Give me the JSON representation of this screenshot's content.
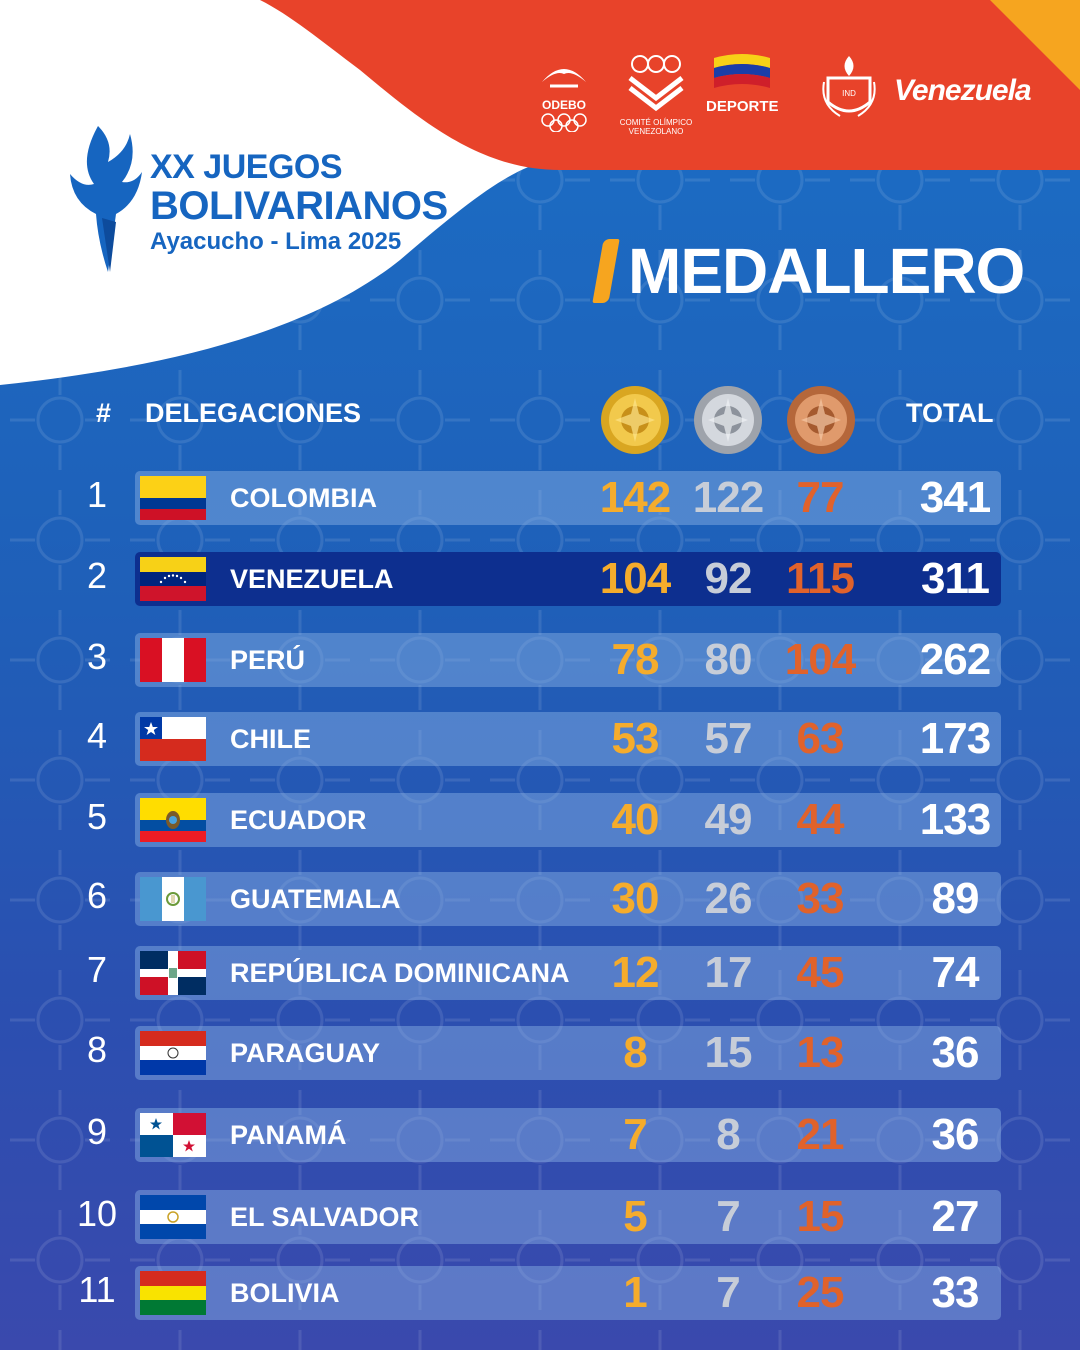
{
  "event": {
    "line1": "XX JUEGOS",
    "line2": "BOLIVARIANOS",
    "line3": "Ayacucho - Lima 2025"
  },
  "logos": {
    "odebo": "ODEBO",
    "coven_line1": "COMITÉ OLÍMPICO",
    "coven_line2": "VENEZOLANO",
    "deporte": "DEPORTE",
    "ind": "IND",
    "venezuela": "Venezuela"
  },
  "title": "MEDALLERO",
  "table": {
    "col_rank": "#",
    "col_delegations": "DELEGACIONES",
    "col_total": "TOTAL",
    "medal_icons": [
      "gold-medal-icon",
      "silver-medal-icon",
      "bronze-medal-icon"
    ],
    "rows": [
      {
        "rank": "1",
        "country": "COLOMBIA",
        "gold": "142",
        "silver": "122",
        "bronze": "77",
        "total": "341"
      },
      {
        "rank": "2",
        "country": "VENEZUELA",
        "gold": "104",
        "silver": "92",
        "bronze": "115",
        "total": "311"
      },
      {
        "rank": "3",
        "country": "PERÚ",
        "gold": "78",
        "silver": "80",
        "bronze": "104",
        "total": "262"
      },
      {
        "rank": "4",
        "country": "CHILE",
        "gold": "53",
        "silver": "57",
        "bronze": "63",
        "total": "173"
      },
      {
        "rank": "5",
        "country": "ECUADOR",
        "gold": "40",
        "silver": "49",
        "bronze": "44",
        "total": "133"
      },
      {
        "rank": "6",
        "country": "GUATEMALA",
        "gold": "30",
        "silver": "26",
        "bronze": "33",
        "total": "89"
      },
      {
        "rank": "7",
        "country": "REPÚBLICA DOMINICANA",
        "gold": "12",
        "silver": "17",
        "bronze": "45",
        "total": "74"
      },
      {
        "rank": "8",
        "country": "PARAGUAY",
        "gold": "8",
        "silver": "15",
        "bronze": "13",
        "total": "36"
      },
      {
        "rank": "9",
        "country": "PANAMÁ",
        "gold": "7",
        "silver": "8",
        "bronze": "21",
        "total": "36"
      },
      {
        "rank": "10",
        "country": "EL SALVADOR",
        "gold": "5",
        "silver": "7",
        "bronze": "15",
        "total": "27"
      },
      {
        "rank": "11",
        "country": "BOLIVIA",
        "gold": "1",
        "silver": "7",
        "bronze": "25",
        "total": "33"
      }
    ]
  },
  "colors": {
    "gold": "#f5ac2c",
    "silver": "#c7cdd8",
    "bronze": "#e0622b",
    "highlight_row": "#0d2f8f",
    "header_red": "#e8432a",
    "accent_orange": "#f6a51f",
    "title_blue": "#1665c0"
  }
}
